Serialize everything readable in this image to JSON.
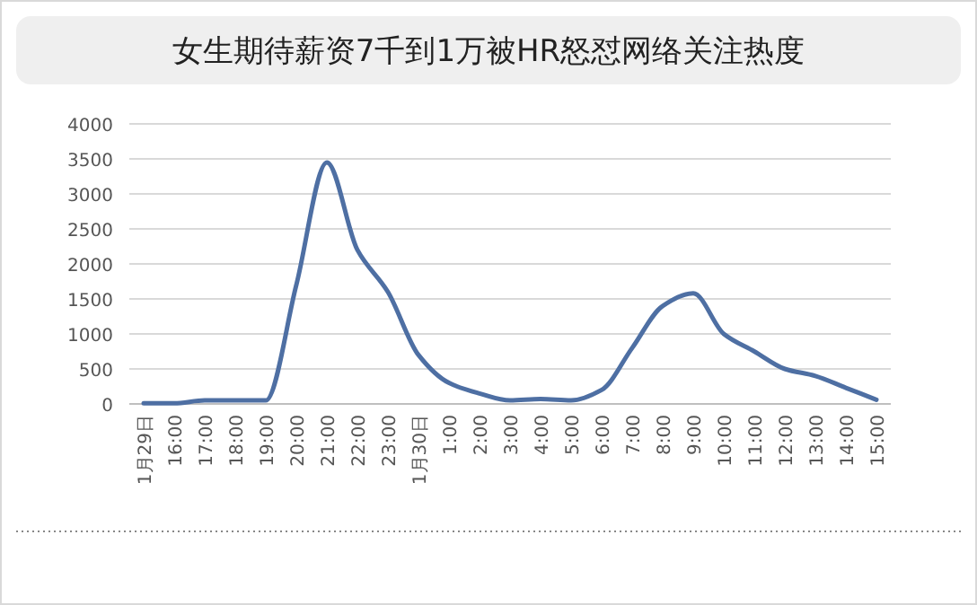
{
  "chart_data": {
    "type": "line",
    "title": "女生期待薪资7千到1万被HR怒怼网络关注热度",
    "categories": [
      "1月29日",
      "16:00",
      "17:00",
      "18:00",
      "19:00",
      "20:00",
      "21:00",
      "22:00",
      "23:00",
      "1月30日",
      "1:00",
      "2:00",
      "3:00",
      "4:00",
      "5:00",
      "6:00",
      "7:00",
      "8:00",
      "9:00",
      "10:00",
      "11:00",
      "12:00",
      "13:00",
      "14:00",
      "15:00"
    ],
    "series": [
      {
        "color": "#4e6fa3",
        "values": [
          10,
          10,
          50,
          50,
          50,
          1700,
          3450,
          2200,
          1600,
          700,
          300,
          150,
          50,
          70,
          50,
          200,
          800,
          1400,
          1580,
          1000,
          750,
          500,
          400,
          230,
          60
        ]
      }
    ],
    "ylim": [
      0,
      4000
    ],
    "yticks": [
      0,
      500,
      1000,
      1500,
      2000,
      2500,
      3000,
      3500,
      4000
    ],
    "grid": "y",
    "marker": "none",
    "line_style": "solid"
  }
}
